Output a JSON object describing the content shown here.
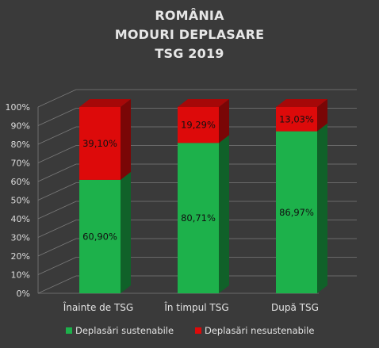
{
  "chart_data": {
    "type": "bar",
    "stacked": true,
    "percent_stacked": true,
    "title_lines": [
      "ROMÂNIA",
      "MODURI DEPLASARE",
      "TSG 2019"
    ],
    "categories": [
      "Înainte de TSG",
      "În timpul TSG",
      "După TSG"
    ],
    "series": [
      {
        "name": "Deplasări sustenabile",
        "values": [
          60.9,
          80.71,
          86.97
        ],
        "labels": [
          "60,90%",
          "80,71%",
          "86,97%"
        ],
        "color": "#1db14b"
      },
      {
        "name": "Deplasări nesustenabile",
        "values": [
          39.1,
          19.29,
          13.03
        ],
        "labels": [
          "39,10%",
          "19,29%",
          "13,03%"
        ],
        "color": "#dd0a0a"
      }
    ],
    "yticks": [
      "0%",
      "10%",
      "20%",
      "30%",
      "40%",
      "50%",
      "60%",
      "70%",
      "80%",
      "90%",
      "100%"
    ],
    "ylim": [
      0,
      100
    ],
    "grid": true,
    "legend_position": "bottom"
  }
}
